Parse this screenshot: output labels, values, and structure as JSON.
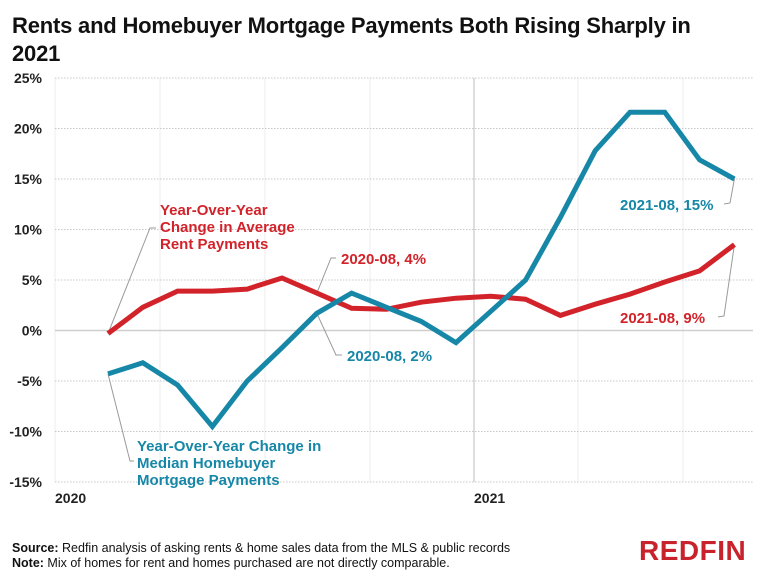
{
  "title": "Rents and Homebuyer Mortgage Payments Both Rising Sharply in 2021",
  "footer": {
    "source_label": "Source:",
    "source_text": " Redfin analysis of asking rents & home sales data from the MLS & public records",
    "note_label": "Note:",
    "note_text": " Mix of homes for rent and homes purchased are not directly comparable."
  },
  "logo": "REDFIN",
  "colors": {
    "rent": "#d2232a",
    "mortgage": "#1787a8",
    "grid": "#d9d9d9",
    "zero_line": "#cfcfcf",
    "leader": "#9a9a9a"
  },
  "annotations": {
    "rent_series_label": [
      "Year-Over-Year",
      "Change in Average",
      "Rent Payments"
    ],
    "mortgage_series_label": [
      "Year-Over-Year Change in",
      "Median Homebuyer",
      "Mortgage Payments"
    ],
    "rent_2020_08": "2020-08, 4%",
    "mortgage_2020_08": "2020-08, 2%",
    "rent_2021_08": "2021-08, 9%",
    "mortgage_2021_08": "2021-08, 15%"
  },
  "chart_data": {
    "type": "line",
    "title": "Rents and Homebuyer Mortgage Payments Both Rising Sharply in 2021",
    "xlabel": "",
    "ylabel": "",
    "x": [
      "2020-02",
      "2020-03",
      "2020-04",
      "2020-05",
      "2020-06",
      "2020-07",
      "2020-08",
      "2020-09",
      "2020-10",
      "2020-11",
      "2020-12",
      "2021-01",
      "2021-02",
      "2021-03",
      "2021-04",
      "2021-05",
      "2021-06",
      "2021-07",
      "2021-08"
    ],
    "x_tick_labels": [
      "2020",
      "2021"
    ],
    "y_tick_labels": [
      "25%",
      "20%",
      "15%",
      "10%",
      "5%",
      "0%",
      "-5%",
      "-10%",
      "-15%"
    ],
    "ylim": [
      -15,
      25
    ],
    "grid": true,
    "legend": "inline annotations",
    "series": [
      {
        "name": "Year-Over-Year Change in Average Rent Payments",
        "color": "#d2232a",
        "values": [
          -0.3,
          2.3,
          3.9,
          3.9,
          4.1,
          5.2,
          3.7,
          2.2,
          2.1,
          2.8,
          3.2,
          3.4,
          3.1,
          1.5,
          2.6,
          3.6,
          4.8,
          5.9,
          8.5
        ]
      },
      {
        "name": "Year-Over-Year Change in Median Homebuyer Mortgage Payments",
        "color": "#1787a8",
        "values": [
          -4.3,
          -3.2,
          -5.4,
          -9.5,
          -5.0,
          -1.7,
          1.7,
          3.7,
          2.3,
          0.9,
          -1.2,
          1.9,
          5.0,
          11.2,
          17.8,
          21.6,
          21.6,
          16.9,
          15.0
        ]
      }
    ],
    "annotations": [
      "2020-08, 4%",
      "2020-08, 2%",
      "2021-08, 15%",
      "2021-08, 9%"
    ]
  }
}
